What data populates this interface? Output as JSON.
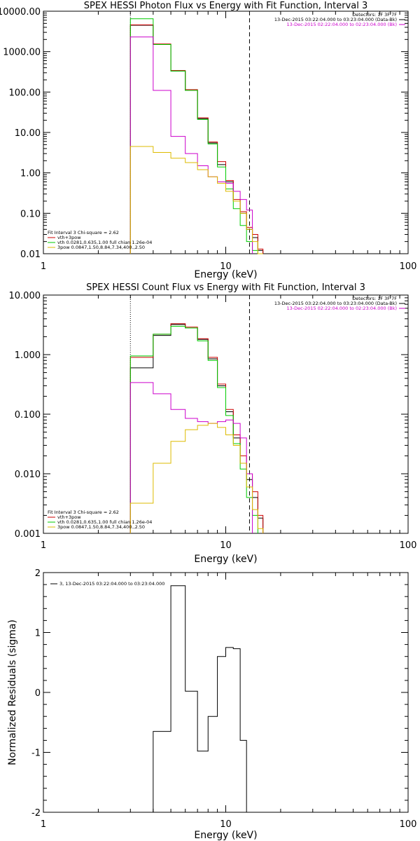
{
  "chart_data": [
    {
      "type": "line",
      "title": "SPEX HESSI Photon Flux vs Energy with Fit Function, Interval 3",
      "xlabel": "Energy (keV)",
      "ylabel": "",
      "xscale": "log",
      "yscale": "log",
      "xlim": [
        1,
        100
      ],
      "ylim": [
        0.01,
        10000
      ],
      "xticks": [
        1,
        10,
        100
      ],
      "xtick_labels": [
        "1",
        "10",
        "100"
      ],
      "yticks": [
        0.01,
        0.1,
        1,
        10,
        100,
        1000,
        10000
      ],
      "ytick_labels": [
        "0.01",
        "0.10",
        "1.00",
        "10.00",
        "100.00",
        "1000.00",
        "10000.00"
      ],
      "vlines": [
        {
          "x": 3.0,
          "style": "dotted"
        },
        {
          "x": 13.5,
          "style": "dashed"
        }
      ],
      "legend_header": [
        "Detectors: 1F 3F 7F",
        "13-Dec-2015 03:22:04.000 to 03:23:04.000 (Data-Bk)",
        "13-Dec-2015 02:22:04.000 to 02:23:04.000 (Bk)"
      ],
      "legend_header_colors": [
        "#000000",
        "#000000",
        "#cc00cc"
      ],
      "legend_fit": [
        "Fit Interval 3   Chi-square = 2.62",
        "vth+3pow",
        "vth 0.0281,0.635,1.00  full chian 1.26e-04",
        "3pow 0.0847,1.50,8.84,7.34,400.,2.50"
      ],
      "legend_fit_colors": [
        "#000000",
        "#cc0000",
        "#00cc00",
        "#ddbb00"
      ],
      "edges": [
        3.0,
        4.0,
        5.0,
        6.0,
        7.0,
        8.0,
        9.0,
        10.0,
        11.0,
        12.0,
        13.0,
        14.0,
        15.0,
        16.0
      ],
      "series": [
        {
          "color": "#000000",
          "values": [
            4500,
            1500,
            330,
            110,
            22,
            5.5,
            1.6,
            0.6,
            0.2,
            0.1,
            0.04,
            0.025,
            0.012
          ]
        },
        {
          "color": "#cc0000",
          "values": [
            4600,
            1550,
            340,
            115,
            23,
            5.8,
            1.9,
            0.65,
            0.22,
            0.11,
            0.045,
            0.03,
            0.013
          ]
        },
        {
          "color": "#00cc00",
          "values": [
            6500,
            1500,
            330,
            110,
            21,
            5.2,
            1.4,
            0.4,
            0.13,
            0.05,
            0.02,
            0.012
          ]
        },
        {
          "color": "#cc00cc",
          "values": [
            2300,
            110,
            8,
            3,
            1.5,
            0.8,
            0.6,
            0.55,
            0.35,
            0.22,
            0.12
          ]
        },
        {
          "color": "#ddbb00",
          "values": [
            4.5,
            3.2,
            2.3,
            1.8,
            1.2,
            0.8,
            0.55,
            0.35,
            0.2,
            0.1,
            0.04,
            0.02,
            0.01
          ]
        }
      ]
    },
    {
      "type": "line",
      "title": "SPEX HESSI Count Flux vs Energy with Fit Function, Interval 3",
      "xlabel": "Energy (keV)",
      "ylabel": "",
      "xscale": "log",
      "yscale": "log",
      "xlim": [
        1,
        100
      ],
      "ylim": [
        0.001,
        10
      ],
      "xticks": [
        1,
        10,
        100
      ],
      "xtick_labels": [
        "1",
        "10",
        "100"
      ],
      "yticks": [
        0.001,
        0.01,
        0.1,
        1,
        10
      ],
      "ytick_labels": [
        "0.001",
        "0.010",
        "0.100",
        "1.000",
        "10.000"
      ],
      "vlines": [
        {
          "x": 3.0,
          "style": "dotted"
        },
        {
          "x": 13.5,
          "style": "dashed"
        }
      ],
      "legend_header": [
        "Detectors: 1F 3F 7F",
        "13-Dec-2015 03:22:04.000 to 03:23:04.000 (Data-Bk)",
        "13-Dec-2015 02:22:04.000 to 02:23:04.000 (Bk)"
      ],
      "legend_header_colors": [
        "#000000",
        "#000000",
        "#cc00cc"
      ],
      "legend_fit": [
        "Fit Interval 3   Chi-square = 2.62",
        "vth+3pow",
        "vth 0.0281,0.635,1.00  full chian 1.26e-04",
        "3pow 0.0847,1.50,8.84,7.34,400.,2.50"
      ],
      "legend_fit_colors": [
        "#000000",
        "#cc0000",
        "#00cc00",
        "#ddbb00"
      ],
      "edges": [
        3.0,
        4.0,
        5.0,
        6.0,
        7.0,
        8.0,
        9.0,
        10.0,
        11.0,
        12.0,
        13.0,
        14.0,
        15.0,
        16.0
      ],
      "series": [
        {
          "color": "#000000",
          "values": [
            0.6,
            2.1,
            3.2,
            2.8,
            1.8,
            0.85,
            0.3,
            0.11,
            0.04,
            0.015,
            0.008,
            0.004,
            0.0018
          ]
        },
        {
          "color": "#cc0000",
          "values": [
            0.9,
            2.2,
            3.3,
            2.9,
            1.85,
            0.9,
            0.32,
            0.12,
            0.045,
            0.02,
            0.01,
            0.005,
            0.002
          ]
        },
        {
          "color": "#00cc00",
          "values": [
            0.95,
            2.2,
            3.0,
            2.8,
            1.7,
            0.8,
            0.28,
            0.095,
            0.032,
            0.012,
            0.004,
            0.002
          ]
        },
        {
          "color": "#cc00cc",
          "values": [
            0.34,
            0.22,
            0.12,
            0.085,
            0.075,
            0.07,
            0.075,
            0.08,
            0.07,
            0.04,
            0.01
          ]
        },
        {
          "color": "#ddbb00",
          "values": [
            0.0032,
            0.015,
            0.035,
            0.055,
            0.065,
            0.07,
            0.06,
            0.045,
            0.03,
            0.015,
            0.006,
            0.0025,
            0.0012
          ]
        }
      ]
    },
    {
      "type": "line",
      "title": "",
      "xlabel": "Energy (keV)",
      "ylabel": "Normalized Residuals (sigma)",
      "xscale": "log",
      "yscale": "linear",
      "xlim": [
        1,
        100
      ],
      "ylim": [
        -2,
        2
      ],
      "xticks": [
        1,
        10,
        100
      ],
      "xtick_labels": [
        "1",
        "10",
        "100"
      ],
      "yticks": [
        -2,
        -1,
        0,
        1,
        2
      ],
      "ytick_labels": [
        "-2",
        "-1",
        "0",
        "1",
        "2"
      ],
      "legend": "3, 13-Dec-2015 03:22:04.000 to 03:23:04.000",
      "edges": [
        3.0,
        4.0,
        5.0,
        6.0,
        7.0,
        8.0,
        9.0,
        10.0,
        11.0,
        12.0,
        13.0,
        14.0
      ],
      "series": [
        {
          "color": "#000000",
          "values": [
            -2.0,
            -0.65,
            1.78,
            0.02,
            -0.98,
            -0.4,
            0.6,
            0.75,
            0.73,
            -0.8,
            -2.0
          ]
        }
      ]
    }
  ]
}
